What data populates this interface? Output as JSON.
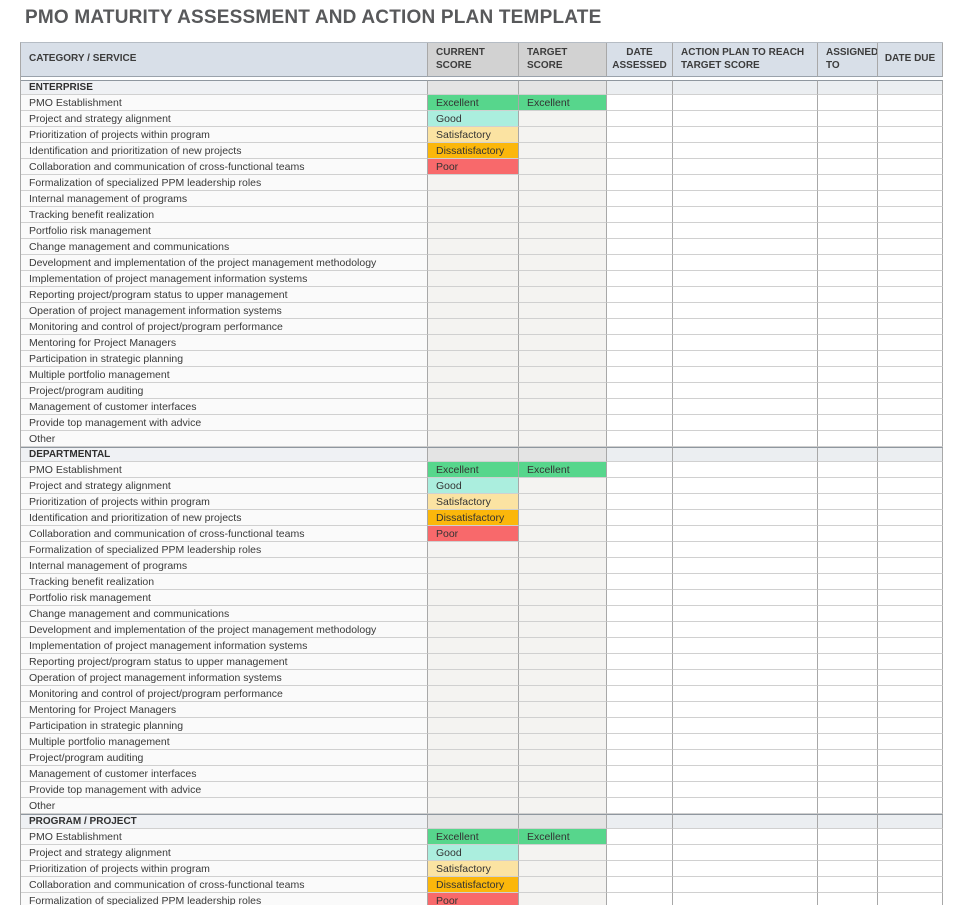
{
  "title": "PMO MATURITY ASSESSMENT AND ACTION PLAN TEMPLATE",
  "table": {
    "columns": [
      {
        "id": "category",
        "label": "CATEGORY / SERVICE"
      },
      {
        "id": "current",
        "label": "CURRENT SCORE"
      },
      {
        "id": "target",
        "label": "TARGET SCORE"
      },
      {
        "id": "date_assessed",
        "label": "DATE ASSESSED"
      },
      {
        "id": "action_plan",
        "label": "ACTION PLAN TO REACH TARGET SCORE"
      },
      {
        "id": "assigned_to",
        "label": "ASSIGNED TO"
      },
      {
        "id": "date_due",
        "label": "DATE DUE"
      }
    ],
    "score_colors": {
      "Excellent": "#57D68C",
      "Good": "#ABEEDE",
      "Satisfactory": "#FBE3A2",
      "Dissatisfactory": "#FBB70B",
      "Poor": "#F8696B"
    },
    "sections": [
      {
        "name": "ENTERPRISE",
        "rows": [
          {
            "category": "PMO Establishment",
            "current": "Excellent",
            "target": "Excellent"
          },
          {
            "category": "Project and strategy alignment",
            "current": "Good"
          },
          {
            "category": "Prioritization of projects within program",
            "current": "Satisfactory"
          },
          {
            "category": "Identification and prioritization of new projects",
            "current": "Dissatisfactory"
          },
          {
            "category": "Collaboration and communication of cross-functional teams",
            "current": "Poor"
          },
          {
            "category": "Formalization of specialized PPM leadership roles"
          },
          {
            "category": "Internal management of programs"
          },
          {
            "category": "Tracking benefit realization"
          },
          {
            "category": "Portfolio risk management"
          },
          {
            "category": "Change management and communications"
          },
          {
            "category": "Development and implementation of the project management methodology"
          },
          {
            "category": "Implementation of project management information systems"
          },
          {
            "category": "Reporting project/program status to upper management"
          },
          {
            "category": "Operation of project management information systems"
          },
          {
            "category": "Monitoring and control of project/program performance"
          },
          {
            "category": "Mentoring for Project Managers"
          },
          {
            "category": "Participation in strategic planning"
          },
          {
            "category": "Multiple portfolio management"
          },
          {
            "category": "Project/program auditing"
          },
          {
            "category": "Management of customer interfaces"
          },
          {
            "category": "Provide top management with advice"
          },
          {
            "category": "Other"
          }
        ]
      },
      {
        "name": "DEPARTMENTAL",
        "rows": [
          {
            "category": "PMO Establishment",
            "current": "Excellent",
            "target": "Excellent"
          },
          {
            "category": "Project and strategy alignment",
            "current": "Good"
          },
          {
            "category": "Prioritization of projects within program",
            "current": "Satisfactory"
          },
          {
            "category": "Identification and prioritization of new projects",
            "current": "Dissatisfactory"
          },
          {
            "category": "Collaboration and communication of cross-functional teams",
            "current": "Poor"
          },
          {
            "category": "Formalization of specialized PPM leadership roles"
          },
          {
            "category": "Internal management of programs"
          },
          {
            "category": "Tracking benefit realization"
          },
          {
            "category": "Portfolio risk management"
          },
          {
            "category": "Change management and communications"
          },
          {
            "category": "Development and implementation of the project management methodology"
          },
          {
            "category": "Implementation of project management information systems"
          },
          {
            "category": "Reporting project/program status to upper management"
          },
          {
            "category": "Operation of project management information systems"
          },
          {
            "category": "Monitoring and control of project/program performance"
          },
          {
            "category": "Mentoring for Project Managers"
          },
          {
            "category": "Participation in strategic planning"
          },
          {
            "category": "Multiple portfolio management"
          },
          {
            "category": "Project/program auditing"
          },
          {
            "category": "Management of customer interfaces"
          },
          {
            "category": "Provide top management with advice"
          },
          {
            "category": "Other"
          }
        ]
      },
      {
        "name": "PROGRAM / PROJECT",
        "rows": [
          {
            "category": "PMO Establishment",
            "current": "Excellent",
            "target": "Excellent"
          },
          {
            "category": "Project and strategy alignment",
            "current": "Good"
          },
          {
            "category": "Prioritization of projects within program",
            "current": "Satisfactory"
          },
          {
            "category": "Collaboration and communication of cross-functional teams",
            "current": "Dissatisfactory"
          },
          {
            "category": "Formalization of specialized PPM leadership roles",
            "current": "Poor"
          }
        ]
      }
    ]
  }
}
